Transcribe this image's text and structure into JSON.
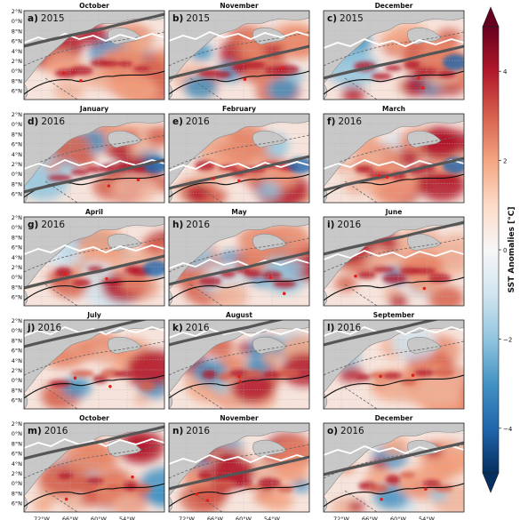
{
  "figure": {
    "colorbar": {
      "label": "SST Anomalies [°C]",
      "ticks": [
        "4",
        "2",
        "0",
        "−2",
        "−4"
      ],
      "tick_values": [
        4,
        2,
        0,
        -2,
        -4
      ],
      "range": [
        -5,
        5
      ],
      "colors": [
        "#053061",
        "#2166ac",
        "#4393c3",
        "#92c5de",
        "#d1e5f0",
        "#f7f7f7",
        "#fddbc7",
        "#f4a582",
        "#d6604d",
        "#b2182b",
        "#67001f"
      ]
    },
    "lat_ticks": [
      "2°N",
      "0°N",
      "8°N",
      "6°N",
      "4°N",
      "2°N",
      "0°N",
      "8°N",
      "6°N"
    ],
    "lon_ticks": [
      "72°W",
      "66°W",
      "60°W",
      "54°W"
    ],
    "colors": {
      "land": "#c8c8c8",
      "coast": "#8a8a8a",
      "white_line": "#ffffff",
      "gray_line": "#555555",
      "contour_line": "#111111",
      "dashed_line": "#666666",
      "marker": "#e0211b"
    },
    "panels": [
      {
        "tag": "a)",
        "year": "2015",
        "month": "October"
      },
      {
        "tag": "b)",
        "year": "2015",
        "month": "November"
      },
      {
        "tag": "c)",
        "year": "2015",
        "month": "December"
      },
      {
        "tag": "d)",
        "year": "2016",
        "month": "January"
      },
      {
        "tag": "e)",
        "year": "2016",
        "month": "February"
      },
      {
        "tag": "f)",
        "year": "2016",
        "month": "March"
      },
      {
        "tag": "g)",
        "year": "2016",
        "month": "April"
      },
      {
        "tag": "h)",
        "year": "2016",
        "month": "May"
      },
      {
        "tag": "i)",
        "year": "2016",
        "month": "June"
      },
      {
        "tag": "j)",
        "year": "2016",
        "month": "July"
      },
      {
        "tag": "k)",
        "year": "2016",
        "month": "August"
      },
      {
        "tag": "l)",
        "year": "2016",
        "month": "September"
      },
      {
        "tag": "m)",
        "year": "2016",
        "month": "October"
      },
      {
        "tag": "n)",
        "year": "2016",
        "month": "November"
      },
      {
        "tag": "o)",
        "year": "2016",
        "month": "December"
      }
    ]
  }
}
